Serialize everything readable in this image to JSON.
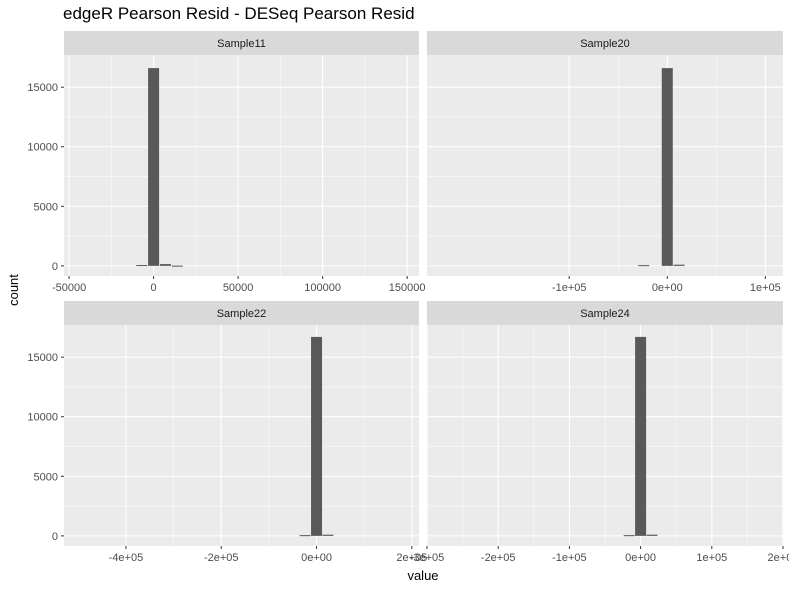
{
  "chart_data": {
    "type": "bar",
    "title": "edgeR Pearson Resid - DESeq Pearson Resid",
    "xlabel": "value",
    "ylabel": "count",
    "y_ticks": [
      0,
      5000,
      10000,
      15000
    ],
    "y_tick_labels": [
      "0",
      "5000",
      "10000",
      "15000"
    ],
    "ylim": [
      -850,
      17700
    ],
    "grid": true,
    "colors": {
      "panel_bg": "#ebebeb",
      "strip_bg": "#d9d9d9",
      "bar": "#595959",
      "grid": "#ffffff"
    },
    "facets": [
      {
        "name": "Sample11",
        "xlim": [
          -53000,
          157000
        ],
        "x_ticks": [
          -50000,
          0,
          50000,
          100000,
          150000
        ],
        "x_tick_labels": [
          "-50000",
          "0",
          "50000",
          "100000",
          "150000"
        ],
        "bins": [
          {
            "x": -7000,
            "count": 70
          },
          {
            "x": 0,
            "count": 16600
          },
          {
            "x": 7000,
            "count": 150
          },
          {
            "x": 14000,
            "count": 20
          }
        ]
      },
      {
        "name": "Sample20",
        "xlim": [
          -245000,
          118000
        ],
        "x_ticks": [
          -100000,
          0,
          100000
        ],
        "x_tick_labels": [
          "-1e+05",
          "0e+00",
          "1e+05"
        ],
        "bins": [
          {
            "x": -24000,
            "count": 60
          },
          {
            "x": 0,
            "count": 16600
          },
          {
            "x": 12000,
            "count": 100
          }
        ]
      },
      {
        "name": "Sample22",
        "xlim": [
          -530000,
          215000
        ],
        "x_ticks": [
          -400000,
          -200000,
          0,
          200000
        ],
        "x_tick_labels": [
          "-4e+05",
          "-2e+05",
          "0e+00",
          "2e+05"
        ],
        "bins": [
          {
            "x": -24000,
            "count": 60
          },
          {
            "x": 0,
            "count": 16700
          },
          {
            "x": 24000,
            "count": 100
          }
        ]
      },
      {
        "name": "Sample24",
        "xlim": [
          -300000,
          200000
        ],
        "x_ticks": [
          -300000,
          -200000,
          -100000,
          0,
          100000,
          200000
        ],
        "x_tick_labels": [
          "-3e+05",
          "-2e+05",
          "-1e+05",
          "0e+00",
          "1e+05",
          "2e+05"
        ],
        "bins": [
          {
            "x": -16000,
            "count": 60
          },
          {
            "x": 0,
            "count": 16700
          },
          {
            "x": 16000,
            "count": 100
          }
        ]
      }
    ]
  }
}
